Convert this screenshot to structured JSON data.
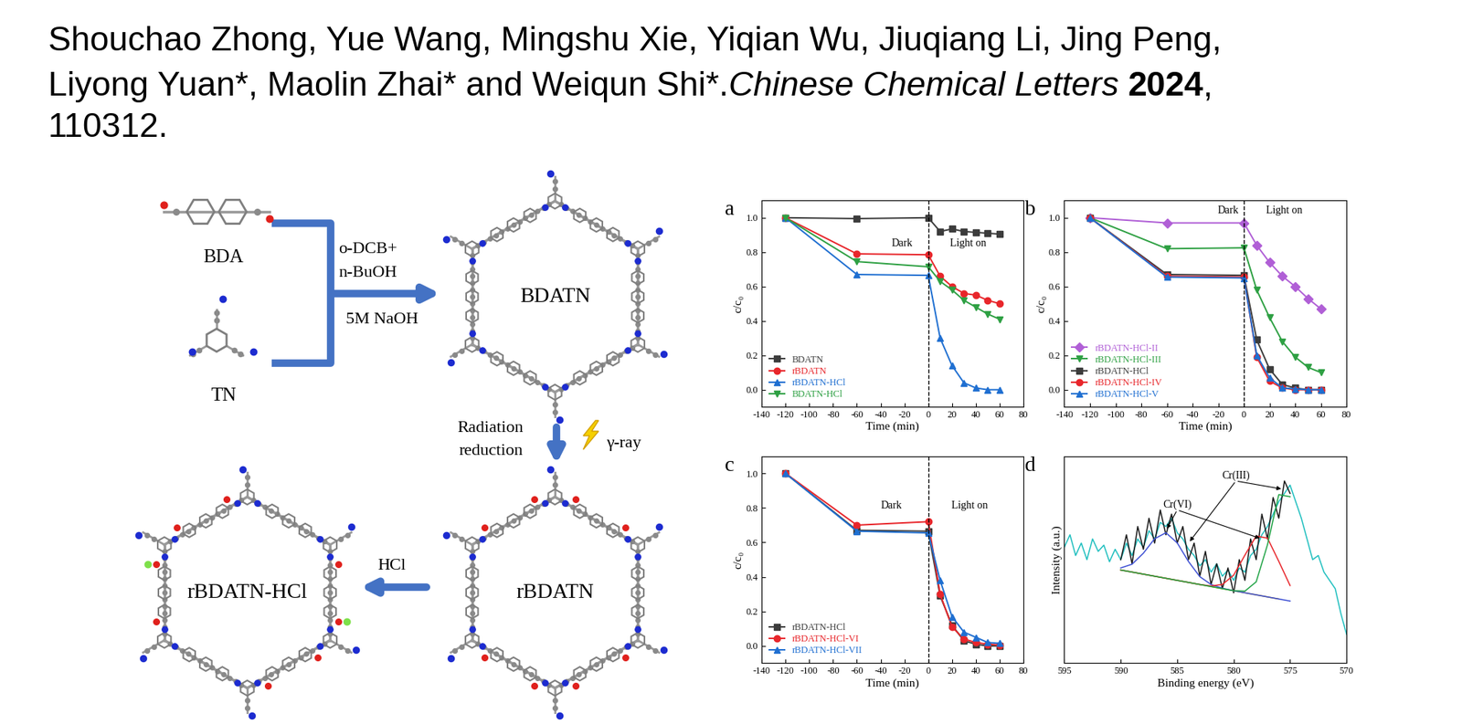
{
  "header": {
    "authors_line1": "Shouchao Zhong, Yue Wang, Mingshu Xie, Yiqian Wu, Jiuqiang Li, Jing Peng,",
    "authors_line2": "Liyong Yuan*, Maolin Zhai* and Weiqun Shi*.",
    "journal": "Chinese Chemical Letters",
    "year": "2024",
    "year_after": ",",
    "article": "110312."
  },
  "scheme": {
    "monomers": [
      "BDA",
      "TN"
    ],
    "conditions": [
      "o-DCB+",
      "n-BuOH",
      "5M NaOH"
    ],
    "frameworks": [
      "BDATN",
      "rBDATN",
      "rBDATN-HCl"
    ],
    "reduction": [
      "Radiation",
      "reduction"
    ],
    "radiation": "γ-ray",
    "acid": "HCl"
  },
  "chart_data": [
    {
      "type": "line",
      "panel": "a",
      "xlabel": "Time (min)",
      "ylabel": "c/c₀",
      "x": [
        -120,
        -60,
        0,
        10,
        20,
        30,
        40,
        50,
        60
      ],
      "xlim": [
        -140,
        80
      ],
      "xticks": [
        -140,
        -120,
        -100,
        -80,
        -60,
        -40,
        -20,
        0,
        20,
        40,
        60,
        80
      ],
      "ylim": [
        -0.1,
        1.1
      ],
      "yticks": [
        {
          "value": 0,
          "label": "0.0"
        },
        0.2,
        0.4,
        0.6,
        0.8,
        {
          "value": 1,
          "label": "1.0"
        }
      ],
      "grid": false,
      "legend": "lower left",
      "light_on_at": 0,
      "annotations": [
        "Dark",
        "Light on"
      ],
      "series": [
        {
          "name": "BDATN",
          "color": "#3c3c3c",
          "marker": "square",
          "values": [
            1.0,
            0.995,
            1.0,
            0.92,
            0.935,
            0.92,
            0.915,
            0.91,
            0.905
          ]
        },
        {
          "name": "rBDATN",
          "color": "#e8262b",
          "marker": "circle",
          "values": [
            1.0,
            0.79,
            0.785,
            0.66,
            0.6,
            0.56,
            0.55,
            0.52,
            0.5
          ]
        },
        {
          "name": "rBDATN-HCl",
          "color": "#1f6fd1",
          "marker": "triangle_up",
          "values": [
            1.0,
            0.67,
            0.665,
            0.3,
            0.14,
            0.04,
            0.01,
            0.0,
            0.0
          ]
        },
        {
          "name": "BDATN-HCl",
          "color": "#2ea043",
          "marker": "triangle_down",
          "values": [
            1.0,
            0.745,
            0.715,
            0.63,
            0.58,
            0.52,
            0.48,
            0.44,
            0.41
          ]
        }
      ]
    },
    {
      "type": "line",
      "panel": "b",
      "xlabel": "Time (min)",
      "ylabel": "c/c₀",
      "x": [
        -120,
        -60,
        0,
        10,
        20,
        30,
        40,
        50,
        60
      ],
      "xlim": [
        -140,
        80
      ],
      "xticks": [
        -140,
        -120,
        -100,
        -80,
        -60,
        -40,
        -20,
        0,
        20,
        40,
        60,
        80
      ],
      "ylim": [
        -0.1,
        1.1
      ],
      "yticks": [
        {
          "value": 0,
          "label": "0.0"
        },
        0.2,
        0.4,
        0.6,
        0.8,
        {
          "value": 1,
          "label": "1.0"
        }
      ],
      "grid": false,
      "legend": "lower left",
      "light_on_at": 0,
      "annotations": [
        "Dark",
        "Light on"
      ],
      "series": [
        {
          "name": "rBDATN-HCl-II",
          "color": "#b05fd6",
          "marker": "diamond",
          "values": [
            1.0,
            0.97,
            0.97,
            0.84,
            0.74,
            0.66,
            0.6,
            0.53,
            0.47
          ]
        },
        {
          "name": "rBDATN-HCl-III",
          "color": "#2ea043",
          "marker": "triangle_down",
          "values": [
            1.0,
            0.82,
            0.825,
            0.58,
            0.42,
            0.28,
            0.19,
            0.13,
            0.1
          ]
        },
        {
          "name": "rBDATN-HCl",
          "color": "#3c3c3c",
          "marker": "square",
          "values": [
            1.0,
            0.67,
            0.665,
            0.29,
            0.12,
            0.03,
            0.01,
            0.0,
            0.0
          ]
        },
        {
          "name": "rBDATN-HCl-IV",
          "color": "#e8262b",
          "marker": "circle",
          "values": [
            1.0,
            0.66,
            0.655,
            0.19,
            0.05,
            0.01,
            0.0,
            0.0,
            0.0
          ]
        },
        {
          "name": "rBDATN-HCl-V",
          "color": "#1f6fd1",
          "marker": "triangle_up",
          "values": [
            1.0,
            0.655,
            0.65,
            0.2,
            0.07,
            0.01,
            0.005,
            0.0,
            0.0
          ]
        }
      ]
    },
    {
      "type": "line",
      "panel": "c",
      "xlabel": "Time (min)",
      "ylabel": "c/c₀",
      "x": [
        -120,
        -60,
        0,
        10,
        20,
        30,
        40,
        50,
        60
      ],
      "xlim": [
        -140,
        80
      ],
      "xticks": [
        -140,
        -120,
        -100,
        -80,
        -60,
        -40,
        -20,
        0,
        20,
        40,
        60,
        80
      ],
      "ylim": [
        -0.1,
        1.1
      ],
      "yticks": [
        {
          "value": 0,
          "label": "0.0"
        },
        0.2,
        0.4,
        0.6,
        0.8,
        {
          "value": 1,
          "label": "1.0"
        }
      ],
      "grid": false,
      "legend": "lower left",
      "light_on_at": 0,
      "annotations": [
        "Dark",
        "Light on"
      ],
      "series": [
        {
          "name": "rBDATN-HCl",
          "color": "#3c3c3c",
          "marker": "square",
          "values": [
            1.0,
            0.67,
            0.665,
            0.29,
            0.12,
            0.03,
            0.01,
            0.0,
            0.0
          ]
        },
        {
          "name": "rBDATN-HCl-VI",
          "color": "#e8262b",
          "marker": "circle",
          "values": [
            1.0,
            0.7,
            0.72,
            0.3,
            0.11,
            0.04,
            0.02,
            0.01,
            0.005
          ]
        },
        {
          "name": "rBDATN-HCl-VII",
          "color": "#1f6fd1",
          "marker": "triangle_up",
          "values": [
            1.0,
            0.665,
            0.655,
            0.38,
            0.17,
            0.08,
            0.05,
            0.02,
            0.015
          ]
        }
      ]
    },
    {
      "type": "line",
      "panel": "d",
      "xlabel": "Binding energy (eV)",
      "ylabel": "Intensity (a.u.)",
      "xlim": [
        595,
        570
      ],
      "xticks": [
        595,
        590,
        585,
        580,
        575,
        570
      ],
      "ylim": [
        0,
        100
      ],
      "tick_labels": "x",
      "grid": false,
      "annotations": [
        "Cr(VI)",
        "Cr(III)"
      ],
      "series": [
        {
          "color": "#1fbfbf",
          "x": [
            595,
            594.5,
            594,
            593.5,
            593,
            592.5,
            592,
            591.5,
            591,
            590.5,
            590,
            589.5,
            589,
            588.5,
            588,
            587.5,
            587,
            586.5,
            586,
            585.5,
            585,
            584.5,
            584,
            583.5,
            583,
            582.5,
            582,
            581.5,
            581,
            580.5,
            580,
            579.5,
            579,
            578.5,
            578,
            577.5,
            577,
            576.5,
            576,
            575.5,
            575,
            574.5,
            574,
            573.5,
            573,
            572.5,
            572,
            571.5,
            571,
            570.5,
            570
          ],
          "values": [
            56,
            62,
            52,
            58,
            50,
            60,
            54,
            57,
            49,
            55,
            50,
            58,
            52,
            60,
            56,
            64,
            60,
            68,
            66,
            70,
            63,
            60,
            55,
            52,
            47,
            50,
            44,
            48,
            42,
            45,
            40,
            46,
            44,
            52,
            55,
            62,
            66,
            72,
            78,
            82,
            86,
            78,
            70,
            60,
            50,
            52,
            44,
            40,
            36,
            24,
            14
          ]
        },
        {
          "color": "#1a1a1a",
          "x": [
            590,
            589.5,
            589,
            588.5,
            588,
            587.5,
            587,
            586.5,
            586,
            585.5,
            585,
            584.5,
            584,
            583.5,
            583,
            582.5,
            582,
            581.5,
            581,
            580.5,
            580,
            579.5,
            579,
            578.5,
            578,
            577.5,
            577,
            576.5,
            576,
            575.5,
            575
          ],
          "values": [
            50,
            62,
            48,
            66,
            55,
            70,
            58,
            74,
            62,
            72,
            58,
            66,
            50,
            58,
            42,
            54,
            38,
            48,
            36,
            46,
            34,
            50,
            40,
            60,
            50,
            72,
            60,
            80,
            70,
            88,
            82
          ]
        },
        {
          "color": "#c89b00",
          "x": [
            590,
            576
          ],
          "values": [
            45,
            31
          ]
        },
        {
          "color": "#3f51d4",
          "x": [
            590,
            589,
            588,
            587,
            586,
            585,
            584,
            583,
            582,
            581,
            580,
            579,
            578,
            577,
            576,
            575
          ],
          "values": [
            46,
            47.8,
            53.1,
            60.1,
            63,
            58.1,
            49.1,
            41.8,
            38,
            36.2,
            35,
            34,
            33,
            32,
            31,
            30
          ]
        },
        {
          "color": "#e8262b",
          "x": [
            590,
            589,
            588,
            587,
            586,
            585,
            584,
            583,
            582,
            581,
            580,
            579,
            578,
            577,
            576,
            575
          ],
          "values": [
            45,
            44,
            43,
            42,
            41,
            40,
            39,
            38,
            37.3,
            38,
            42.5,
            52.2,
            61.4,
            60.4,
            49.2,
            37.5
          ]
        },
        {
          "color": "#22a447",
          "x": [
            590,
            589,
            588,
            587,
            586,
            585,
            584,
            583,
            582,
            581,
            580,
            579,
            578,
            577,
            576,
            575
          ],
          "values": [
            45,
            44,
            43,
            42,
            41,
            40,
            39,
            38,
            37,
            36,
            35,
            34.8,
            39.3,
            57.2,
            81.4,
            80.4
          ]
        }
      ]
    }
  ]
}
